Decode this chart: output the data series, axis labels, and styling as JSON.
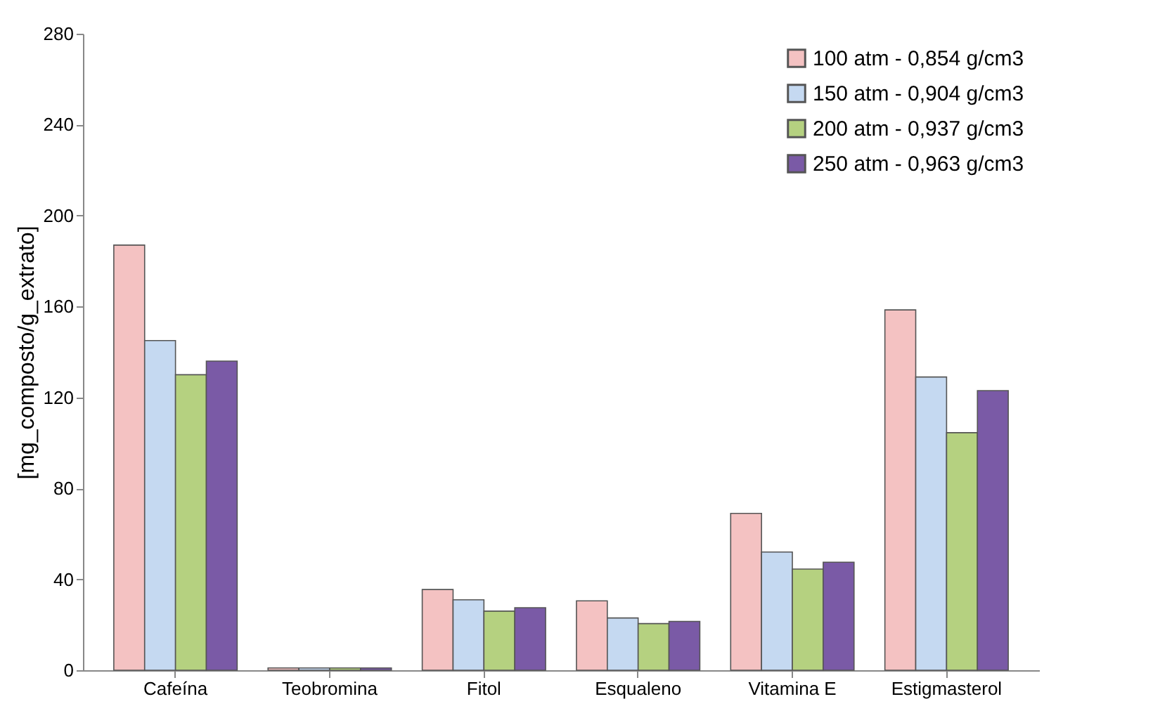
{
  "chart_data": {
    "type": "bar",
    "ylabel": "[mg_composto/g_extrato]",
    "categories": [
      "Cafeína",
      "Teobromina",
      "Fitol",
      "Esqualeno",
      "Vitamina E",
      "Estigmasterol"
    ],
    "series": [
      {
        "name": "100 atm - 0,854 g/cm3",
        "color": "#f4c2c2",
        "values": [
          187,
          1,
          35.5,
          30.5,
          69,
          158.5
        ]
      },
      {
        "name": "150 atm - 0,904 g/cm3",
        "color": "#c5d9f1",
        "values": [
          145,
          1,
          31,
          23,
          52,
          129
        ]
      },
      {
        "name": "200 atm - 0,937 g/cm3",
        "color": "#b5d180",
        "values": [
          130,
          1,
          26,
          20.5,
          44.5,
          104.5
        ]
      },
      {
        "name": "250 atm - 0,963 g/cm3",
        "color": "#7a5aa6",
        "values": [
          136,
          1,
          27.5,
          21.5,
          47.5,
          123
        ]
      }
    ],
    "ylim": [
      0,
      280
    ],
    "yticks": [
      0,
      40,
      80,
      120,
      160,
      200,
      240,
      280
    ],
    "grid": false,
    "legend": "top right"
  }
}
